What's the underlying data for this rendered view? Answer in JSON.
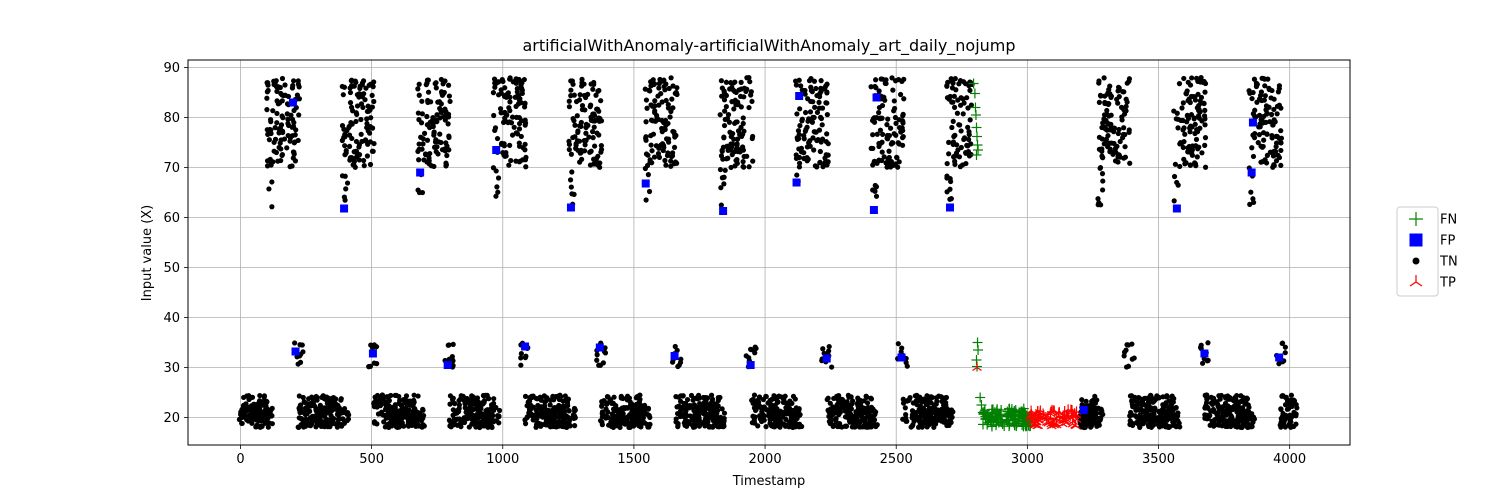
{
  "chart_data": {
    "type": "scatter",
    "title": "artificialWithAnomaly-artificialWithAnomaly_art_daily_nojump",
    "xlabel": "Timestamp",
    "ylabel": "Input value (X)",
    "xlim": [
      -200,
      4230
    ],
    "ylim": [
      14.5,
      91.5
    ],
    "xticks": [
      0,
      500,
      1000,
      1500,
      2000,
      2500,
      3000,
      3500,
      4000
    ],
    "yticks": [
      20,
      30,
      40,
      50,
      60,
      70,
      80,
      90
    ],
    "grid": true,
    "legend_position": "right",
    "series": [
      {
        "name": "FN",
        "marker": "plus",
        "color": "#008000",
        "points": [
          [
            2795,
            86.8
          ],
          [
            2800,
            84.8
          ],
          [
            2802,
            82.0
          ],
          [
            2804,
            80.5
          ],
          [
            2806,
            78.0
          ],
          [
            2808,
            76.2
          ],
          [
            2810,
            74.5
          ],
          [
            2812,
            73.5
          ],
          [
            2806,
            72.5
          ],
          [
            2810,
            35.0
          ],
          [
            2812,
            33.5
          ],
          [
            2806,
            31.5
          ],
          [
            2808,
            30.2
          ],
          [
            2820,
            24.0
          ],
          [
            2825,
            22.5
          ],
          [
            2830,
            21.0
          ],
          [
            2840,
            20.2
          ],
          [
            2860,
            19.2
          ],
          [
            2880,
            20.8
          ],
          [
            2900,
            21.5
          ],
          [
            2920,
            19.5
          ],
          [
            2940,
            20.5
          ],
          [
            2960,
            18.8
          ],
          [
            2980,
            21.2
          ],
          [
            3000,
            20.0
          ]
        ]
      },
      {
        "name": "FP",
        "marker": "square",
        "color": "#0000ff",
        "points": [
          [
            200,
            83.0
          ],
          [
            395,
            61.8
          ],
          [
            210,
            33.2
          ],
          [
            505,
            32.8
          ],
          [
            685,
            69.0
          ],
          [
            790,
            30.5
          ],
          [
            975,
            73.5
          ],
          [
            1085,
            34.2
          ],
          [
            1260,
            62.0
          ],
          [
            1370,
            34.0
          ],
          [
            1545,
            66.8
          ],
          [
            1655,
            32.3
          ],
          [
            1840,
            61.3
          ],
          [
            1945,
            30.5
          ],
          [
            2130,
            84.3
          ],
          [
            2120,
            67.0
          ],
          [
            2235,
            31.8
          ],
          [
            2415,
            61.5
          ],
          [
            2425,
            84.0
          ],
          [
            2520,
            32.0
          ],
          [
            2705,
            62.0
          ],
          [
            3215,
            21.5
          ],
          [
            3570,
            61.8
          ],
          [
            3675,
            32.8
          ],
          [
            3855,
            69.0
          ],
          [
            3960,
            32.0
          ],
          [
            3860,
            79.0
          ]
        ]
      },
      {
        "name": "TN",
        "marker": "circle",
        "color": "#000000",
        "points": []
      },
      {
        "name": "TP",
        "marker": "tri_down",
        "color": "#ff0000",
        "points": [
          [
            2808,
            30.0
          ],
          [
            3030,
            19.8
          ],
          [
            3060,
            20.8
          ],
          [
            3090,
            19.2
          ],
          [
            3120,
            21.0
          ],
          [
            3150,
            20.0
          ],
          [
            3170,
            21.5
          ]
        ]
      }
    ],
    "tn_model": {
      "period": 288,
      "clusters": [
        {
          "x_start": 100,
          "x_end": 225,
          "y_min": 62.0,
          "y_max": 88.0
        },
        {
          "x_start": 200,
          "x_end": 240,
          "y_min": 30.0,
          "y_max": 35.0
        },
        {
          "x_start": 220,
          "x_end": 390,
          "y_min": 18.0,
          "y_max": 24.5
        },
        {
          "x_start": 0,
          "x_end": 125,
          "y_min": 18.0,
          "y_max": 22.0
        }
      ],
      "skip_ranges": [
        [
          2790,
          3010
        ],
        [
          3010,
          3200
        ]
      ]
    }
  }
}
